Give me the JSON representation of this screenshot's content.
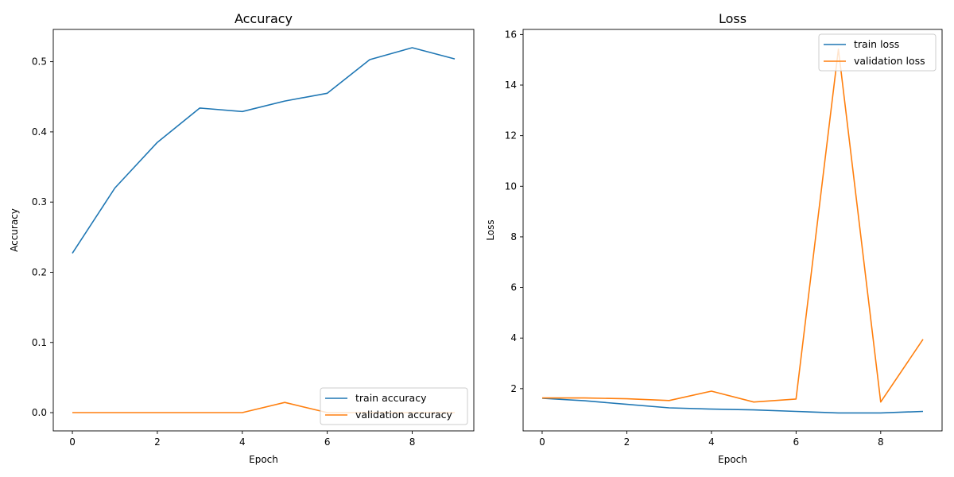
{
  "chart_data": [
    {
      "type": "line",
      "title": "Accuracy",
      "xlabel": "Epoch",
      "ylabel": "Accuracy",
      "x": [
        0,
        1,
        2,
        3,
        4,
        5,
        6,
        7,
        8,
        9
      ],
      "xlim": [
        -0.45,
        9.45
      ],
      "ylim": [
        -0.026,
        0.546
      ],
      "xticks": [
        0,
        2,
        4,
        6,
        8
      ],
      "yticks": [
        0.0,
        0.1,
        0.2,
        0.3,
        0.4,
        0.5
      ],
      "ytick_labels": [
        "0.0",
        "0.1",
        "0.2",
        "0.3",
        "0.4",
        "0.5"
      ],
      "grid": false,
      "legend_position": "bottom-right",
      "series": [
        {
          "name": "train accuracy",
          "color": "#1f77b4",
          "values": [
            0.227,
            0.32,
            0.385,
            0.434,
            0.429,
            0.444,
            0.455,
            0.503,
            0.52,
            0.504
          ]
        },
        {
          "name": "validation accuracy",
          "color": "#ff7f0e",
          "values": [
            0.0,
            0.0,
            0.0,
            0.0,
            0.0,
            0.0145,
            0.0,
            0.0,
            0.0,
            0.0
          ]
        }
      ]
    },
    {
      "type": "line",
      "title": "Loss",
      "xlabel": "Epoch",
      "ylabel": "Loss",
      "x": [
        0,
        1,
        2,
        3,
        4,
        5,
        6,
        7,
        8,
        9
      ],
      "xlim": [
        -0.45,
        9.45
      ],
      "ylim": [
        0.33,
        16.2
      ],
      "xticks": [
        0,
        2,
        4,
        6,
        8
      ],
      "yticks": [
        2,
        4,
        6,
        8,
        10,
        12,
        14,
        16
      ],
      "ytick_labels": [
        "2",
        "4",
        "6",
        "8",
        "10",
        "12",
        "14",
        "16"
      ],
      "grid": false,
      "legend_position": "top-right",
      "series": [
        {
          "name": "train loss",
          "color": "#1f77b4",
          "values": [
            1.62,
            1.52,
            1.38,
            1.24,
            1.19,
            1.16,
            1.1,
            1.04,
            1.04,
            1.1
          ]
        },
        {
          "name": "validation loss",
          "color": "#ff7f0e",
          "values": [
            1.63,
            1.63,
            1.6,
            1.53,
            1.9,
            1.47,
            1.59,
            15.42,
            1.47,
            3.95
          ]
        }
      ]
    }
  ]
}
